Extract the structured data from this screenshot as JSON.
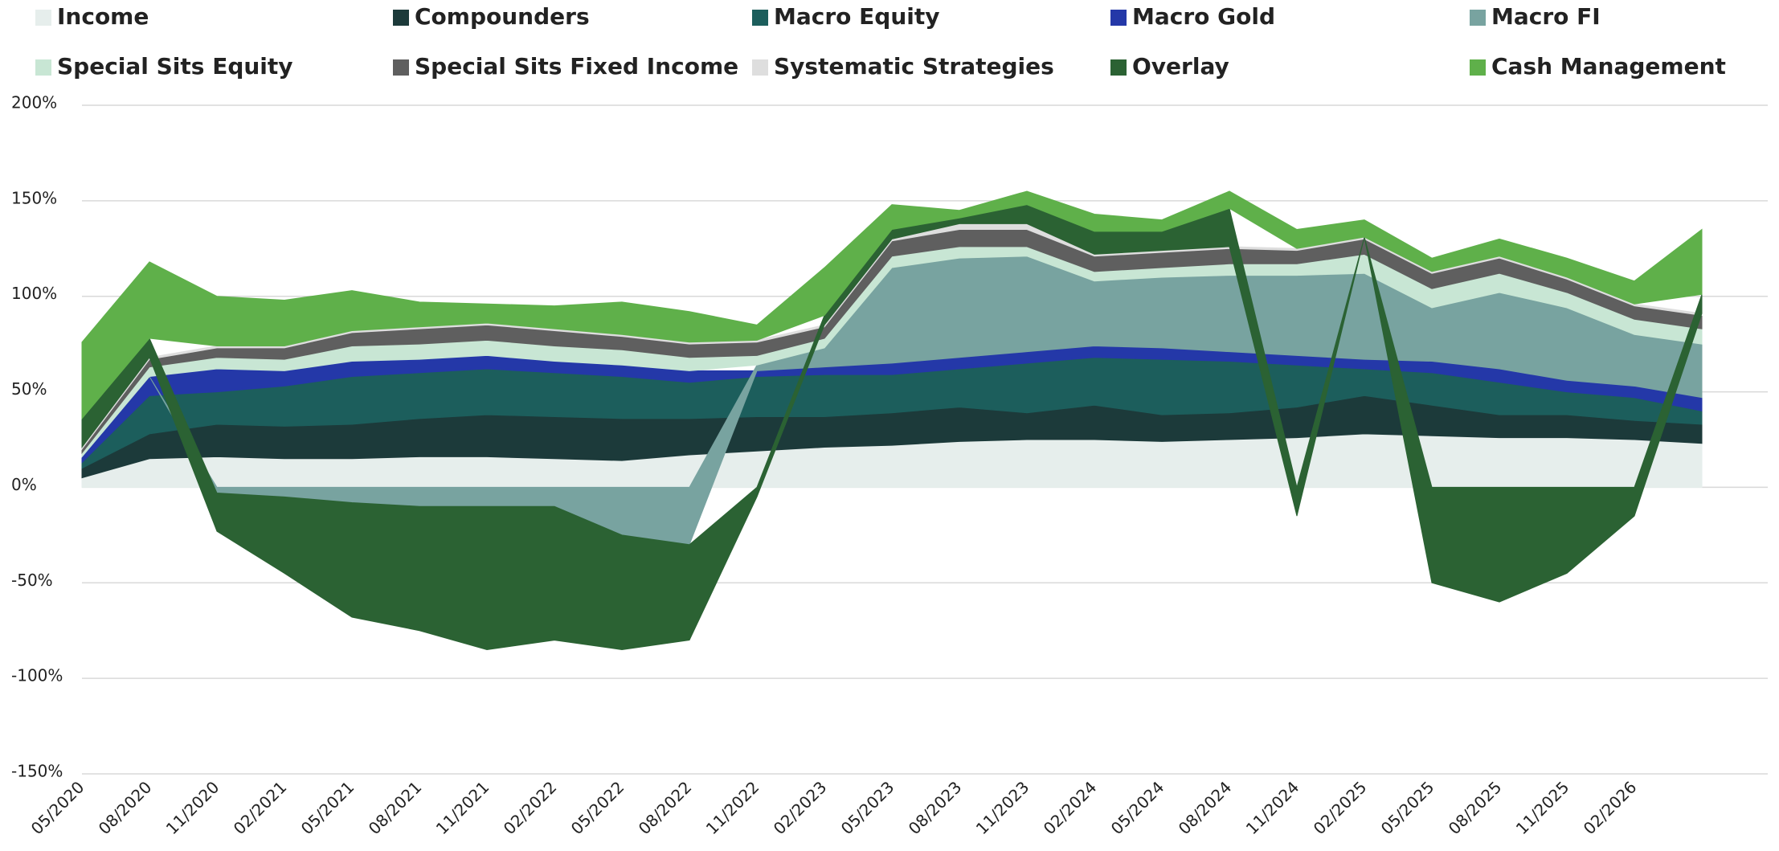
{
  "chart_data": {
    "type": "stacked_area",
    "categories": [
      "05/2020",
      "08/2020",
      "11/2020",
      "02/2021",
      "05/2021",
      "08/2021",
      "11/2021",
      "02/2022",
      "05/2022",
      "08/2022",
      "11/2022",
      "02/2023",
      "05/2023",
      "08/2023",
      "11/2023",
      "02/2024",
      "05/2024",
      "08/2024",
      "11/2024",
      "02/2025",
      "05/2025",
      "08/2025",
      "11/2025",
      "02/2026",
      null
    ],
    "ylim": [
      -150,
      200
    ],
    "yticks": [
      {
        "value": -150,
        "label": "-150%"
      },
      {
        "value": -100,
        "label": "-100%"
      },
      {
        "value": -50,
        "label": "-50%"
      },
      {
        "value": 0,
        "label": "0%"
      },
      {
        "value": 50,
        "label": "50%"
      },
      {
        "value": 100,
        "label": "100%"
      },
      {
        "value": 150,
        "label": "150%"
      },
      {
        "value": 200,
        "label": "200%"
      }
    ],
    "grid": true,
    "legend": "top",
    "series": [
      {
        "name": "Income",
        "color": "#e6eeec",
        "values": [
          5,
          15,
          16,
          15,
          15,
          16,
          16,
          15,
          14,
          17,
          19,
          21,
          22,
          24,
          25,
          25,
          24,
          25,
          26,
          28,
          27,
          26,
          26,
          25,
          23
        ]
      },
      {
        "name": "Compounders",
        "color": "#1c3a3a",
        "values": [
          5,
          13,
          17,
          17,
          18,
          20,
          22,
          22,
          22,
          19,
          18,
          16,
          17,
          18,
          14,
          18,
          14,
          14,
          16,
          20,
          16,
          12,
          12,
          10,
          10
        ]
      },
      {
        "name": "Macro Equity",
        "color": "#1c5e5c",
        "values": [
          3,
          20,
          17,
          21,
          25,
          24,
          24,
          23,
          22,
          19,
          21,
          22,
          20,
          20,
          26,
          25,
          29,
          27,
          22,
          14,
          17,
          17,
          12,
          12,
          7
        ]
      },
      {
        "name": "Macro Gold",
        "color": "#2438a8",
        "values": [
          3,
          10,
          12,
          8,
          8,
          7,
          7,
          6,
          6,
          6,
          3,
          4,
          6,
          6,
          6,
          6,
          6,
          5,
          5,
          5,
          6,
          7,
          6,
          6,
          7
        ]
      },
      {
        "name": "Macro FI",
        "color": "#78a3a0",
        "values": [
          0,
          0,
          -3,
          -5,
          -8,
          -10,
          -10,
          -10,
          -25,
          -30,
          3,
          10,
          50,
          52,
          50,
          34,
          37,
          40,
          42,
          45,
          28,
          40,
          38,
          27,
          28
        ]
      },
      {
        "name": "Special Sits Equity",
        "color": "#c8e6d4",
        "values": [
          2,
          5,
          6,
          6,
          8,
          8,
          8,
          8,
          8,
          7,
          5,
          5,
          6,
          6,
          5,
          5,
          5,
          6,
          6,
          10,
          10,
          10,
          8,
          8,
          8
        ]
      },
      {
        "name": "Special Sits Fixed Income",
        "color": "#5f5f5f",
        "values": [
          2,
          4,
          5,
          6,
          7,
          8,
          8,
          8,
          7,
          7,
          7,
          6,
          8,
          9,
          9,
          8,
          8,
          8,
          7,
          8,
          8,
          8,
          7,
          7,
          7
        ]
      },
      {
        "name": "Systematic Strategies",
        "color": "#dedede",
        "values": [
          1,
          1,
          1,
          1,
          1,
          1,
          1,
          1,
          1,
          1,
          1,
          1,
          1,
          3,
          3,
          1,
          1,
          1,
          1,
          1,
          1,
          1,
          1,
          1,
          1
        ]
      },
      {
        "name": "Overlay",
        "color": "#2b6233",
        "values": [
          15,
          10,
          -20,
          -40,
          -60,
          -65,
          -75,
          -70,
          -60,
          -50,
          -5,
          5,
          5,
          3,
          10,
          12,
          10,
          20,
          -15,
          0,
          -50,
          -60,
          -45,
          -15,
          10
        ]
      },
      {
        "name": "Cash Management",
        "color": "#5fb04a",
        "values": [
          40,
          40,
          26,
          24,
          21,
          13,
          10,
          12,
          17,
          16,
          8,
          25,
          13,
          4,
          7,
          9,
          6,
          9,
          10,
          9,
          7,
          9,
          10,
          12,
          34
        ]
      }
    ]
  }
}
